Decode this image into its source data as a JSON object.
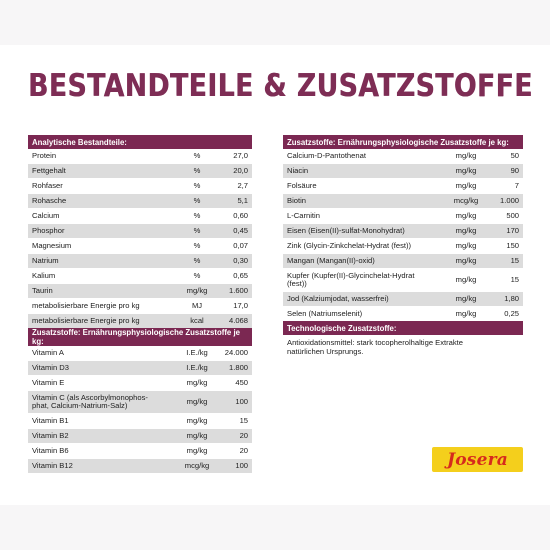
{
  "title": "BESTANDTEILE & ZUSATZSTOFFE",
  "analytic": {
    "header": "Analytische Bestandteile:",
    "rows": [
      [
        "Protein",
        "%",
        "27,0"
      ],
      [
        "Fettgehalt",
        "%",
        "20,0"
      ],
      [
        "Rohfaser",
        "%",
        "2,7"
      ],
      [
        "Rohasche",
        "%",
        "5,1"
      ],
      [
        "Calcium",
        "%",
        "0,60"
      ],
      [
        "Phosphor",
        "%",
        "0,45"
      ],
      [
        "Magnesium",
        "%",
        "0,07"
      ],
      [
        "Natrium",
        "%",
        "0,30"
      ],
      [
        "Kalium",
        "%",
        "0,65"
      ],
      [
        "Taurin",
        "mg/kg",
        "1.600"
      ],
      [
        "metabolisierbare Energie pro kg",
        "MJ",
        "17,0"
      ],
      [
        "metabolisierbare Energie pro kg",
        "kcal",
        "4.068"
      ]
    ]
  },
  "vitamins": {
    "header": "Zusatzstoffe: Ernährungsphysiologische Zusatzstoffe je kg:",
    "rows": [
      [
        "Vitamin A",
        "I.E./kg",
        "24.000"
      ],
      [
        "Vitamin D3",
        "I.E./kg",
        "1.800"
      ],
      [
        "Vitamin E",
        "mg/kg",
        "450"
      ],
      [
        "Vitamin C (als Ascorbylmonophos-\nphat, Calcium-Natrium-Salz)",
        "mg/kg",
        "100"
      ],
      [
        "Vitamin B1",
        "mg/kg",
        "15"
      ],
      [
        "Vitamin B2",
        "mg/kg",
        "20"
      ],
      [
        "Vitamin B6",
        "mg/kg",
        "20"
      ],
      [
        "Vitamin B12",
        "mcg/kg",
        "100"
      ]
    ]
  },
  "minerals": {
    "header": "Zusatzstoffe: Ernährungsphysiologische Zusatzstoffe je kg:",
    "rows": [
      [
        "Calcium-D-Pantothenat",
        "mg/kg",
        "50"
      ],
      [
        "Niacin",
        "mg/kg",
        "90"
      ],
      [
        "Folsäure",
        "mg/kg",
        "7"
      ],
      [
        "Biotin",
        "mcg/kg",
        "1.000"
      ],
      [
        "L-Carnitin",
        "mg/kg",
        "500"
      ],
      [
        "Eisen (Eisen(II)-sulfat-Monohydrat)",
        "mg/kg",
        "170"
      ],
      [
        "Zink (Glycin-Zinkchelat-Hydrat (fest))",
        "mg/kg",
        "150"
      ],
      [
        "Mangan (Mangan(II)-oxid)",
        "mg/kg",
        "15"
      ],
      [
        "Kupfer (Kupfer(II)-Glycinchelat-Hydrat\n(fest))",
        "mg/kg",
        "15"
      ],
      [
        "Jod (Kalziumjodat, wasserfrei)",
        "mg/kg",
        "1,80"
      ],
      [
        "Selen (Natriumselenit)",
        "mg/kg",
        "0,25"
      ]
    ]
  },
  "technological": {
    "header": "Technologische Zusatzstoffe:",
    "text": "Antioxidationsmittel: stark tocopherolhaltige Extrakte\nnatürlichen Ursprungs."
  },
  "brand": {
    "logo_text": "Josera"
  }
}
